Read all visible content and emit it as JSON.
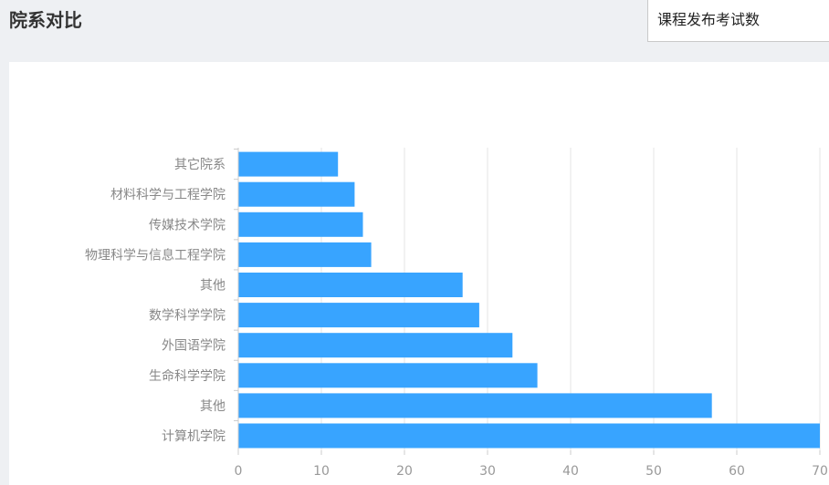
{
  "header": {
    "title": "院系对比",
    "metric_selected": "课程发布考试数"
  },
  "colors": {
    "bar": "#38a4ff",
    "grid": "#e6e6e6",
    "axis": "#cccccc",
    "page_bg": "#eef0f3"
  },
  "chart_data": {
    "type": "bar",
    "orientation": "horizontal",
    "categories": [
      "计算机学院",
      "其他",
      "生命科学学院",
      "外国语学院",
      "数学科学学院",
      "其他",
      "物理科学与信息工程学院",
      "传媒技术学院",
      "材料科学与工程学院",
      "其它院系"
    ],
    "values": [
      70,
      57,
      36,
      33,
      29,
      27,
      16,
      15,
      14,
      12
    ],
    "xlim": [
      0,
      70
    ],
    "xticks": [
      0,
      10,
      20,
      30,
      40,
      50,
      60,
      70
    ],
    "grid": true,
    "title": "",
    "xlabel": "",
    "ylabel": ""
  }
}
